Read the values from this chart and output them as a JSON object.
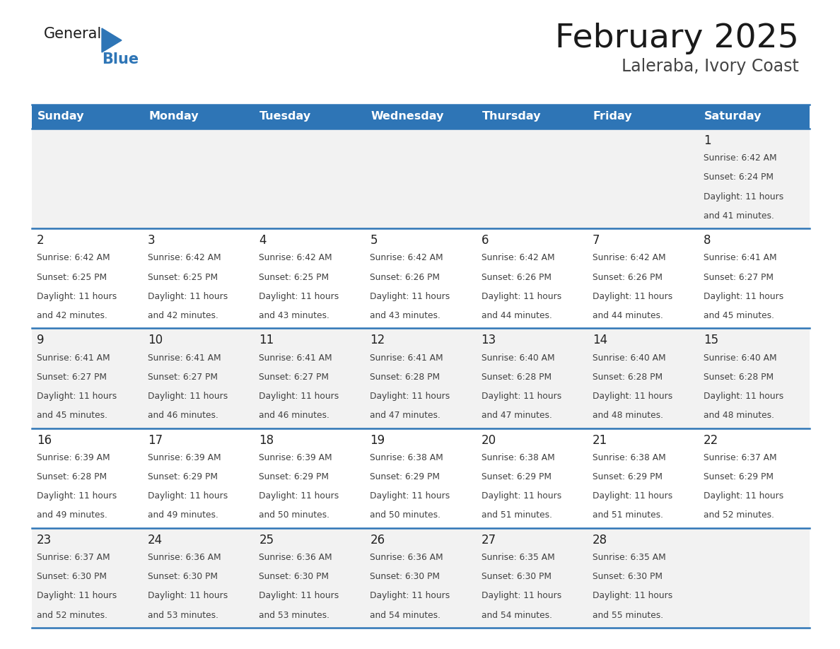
{
  "title": "February 2025",
  "subtitle": "Laleraba, Ivory Coast",
  "header_bg": "#2E75B6",
  "header_text_color": "#FFFFFF",
  "cell_bg_odd": "#F2F2F2",
  "cell_bg_even": "#FFFFFF",
  "border_color": "#2E75B6",
  "text_color": "#404040",
  "days_of_week": [
    "Sunday",
    "Monday",
    "Tuesday",
    "Wednesday",
    "Thursday",
    "Friday",
    "Saturday"
  ],
  "calendar": [
    [
      null,
      null,
      null,
      null,
      null,
      null,
      {
        "day": "1",
        "sunrise": "6:42 AM",
        "sunset": "6:24 PM",
        "daylight_hours": 11,
        "daylight_minutes": 41
      }
    ],
    [
      {
        "day": "2",
        "sunrise": "6:42 AM",
        "sunset": "6:25 PM",
        "daylight_hours": 11,
        "daylight_minutes": 42
      },
      {
        "day": "3",
        "sunrise": "6:42 AM",
        "sunset": "6:25 PM",
        "daylight_hours": 11,
        "daylight_minutes": 42
      },
      {
        "day": "4",
        "sunrise": "6:42 AM",
        "sunset": "6:25 PM",
        "daylight_hours": 11,
        "daylight_minutes": 43
      },
      {
        "day": "5",
        "sunrise": "6:42 AM",
        "sunset": "6:26 PM",
        "daylight_hours": 11,
        "daylight_minutes": 43
      },
      {
        "day": "6",
        "sunrise": "6:42 AM",
        "sunset": "6:26 PM",
        "daylight_hours": 11,
        "daylight_minutes": 44
      },
      {
        "day": "7",
        "sunrise": "6:42 AM",
        "sunset": "6:26 PM",
        "daylight_hours": 11,
        "daylight_minutes": 44
      },
      {
        "day": "8",
        "sunrise": "6:41 AM",
        "sunset": "6:27 PM",
        "daylight_hours": 11,
        "daylight_minutes": 45
      }
    ],
    [
      {
        "day": "9",
        "sunrise": "6:41 AM",
        "sunset": "6:27 PM",
        "daylight_hours": 11,
        "daylight_minutes": 45
      },
      {
        "day": "10",
        "sunrise": "6:41 AM",
        "sunset": "6:27 PM",
        "daylight_hours": 11,
        "daylight_minutes": 46
      },
      {
        "day": "11",
        "sunrise": "6:41 AM",
        "sunset": "6:27 PM",
        "daylight_hours": 11,
        "daylight_minutes": 46
      },
      {
        "day": "12",
        "sunrise": "6:41 AM",
        "sunset": "6:28 PM",
        "daylight_hours": 11,
        "daylight_minutes": 47
      },
      {
        "day": "13",
        "sunrise": "6:40 AM",
        "sunset": "6:28 PM",
        "daylight_hours": 11,
        "daylight_minutes": 47
      },
      {
        "day": "14",
        "sunrise": "6:40 AM",
        "sunset": "6:28 PM",
        "daylight_hours": 11,
        "daylight_minutes": 48
      },
      {
        "day": "15",
        "sunrise": "6:40 AM",
        "sunset": "6:28 PM",
        "daylight_hours": 11,
        "daylight_minutes": 48
      }
    ],
    [
      {
        "day": "16",
        "sunrise": "6:39 AM",
        "sunset": "6:28 PM",
        "daylight_hours": 11,
        "daylight_minutes": 49
      },
      {
        "day": "17",
        "sunrise": "6:39 AM",
        "sunset": "6:29 PM",
        "daylight_hours": 11,
        "daylight_minutes": 49
      },
      {
        "day": "18",
        "sunrise": "6:39 AM",
        "sunset": "6:29 PM",
        "daylight_hours": 11,
        "daylight_minutes": 50
      },
      {
        "day": "19",
        "sunrise": "6:38 AM",
        "sunset": "6:29 PM",
        "daylight_hours": 11,
        "daylight_minutes": 50
      },
      {
        "day": "20",
        "sunrise": "6:38 AM",
        "sunset": "6:29 PM",
        "daylight_hours": 11,
        "daylight_minutes": 51
      },
      {
        "day": "21",
        "sunrise": "6:38 AM",
        "sunset": "6:29 PM",
        "daylight_hours": 11,
        "daylight_minutes": 51
      },
      {
        "day": "22",
        "sunrise": "6:37 AM",
        "sunset": "6:29 PM",
        "daylight_hours": 11,
        "daylight_minutes": 52
      }
    ],
    [
      {
        "day": "23",
        "sunrise": "6:37 AM",
        "sunset": "6:30 PM",
        "daylight_hours": 11,
        "daylight_minutes": 52
      },
      {
        "day": "24",
        "sunrise": "6:36 AM",
        "sunset": "6:30 PM",
        "daylight_hours": 11,
        "daylight_minutes": 53
      },
      {
        "day": "25",
        "sunrise": "6:36 AM",
        "sunset": "6:30 PM",
        "daylight_hours": 11,
        "daylight_minutes": 53
      },
      {
        "day": "26",
        "sunrise": "6:36 AM",
        "sunset": "6:30 PM",
        "daylight_hours": 11,
        "daylight_minutes": 54
      },
      {
        "day": "27",
        "sunrise": "6:35 AM",
        "sunset": "6:30 PM",
        "daylight_hours": 11,
        "daylight_minutes": 54
      },
      {
        "day": "28",
        "sunrise": "6:35 AM",
        "sunset": "6:30 PM",
        "daylight_hours": 11,
        "daylight_minutes": 55
      },
      null
    ]
  ]
}
